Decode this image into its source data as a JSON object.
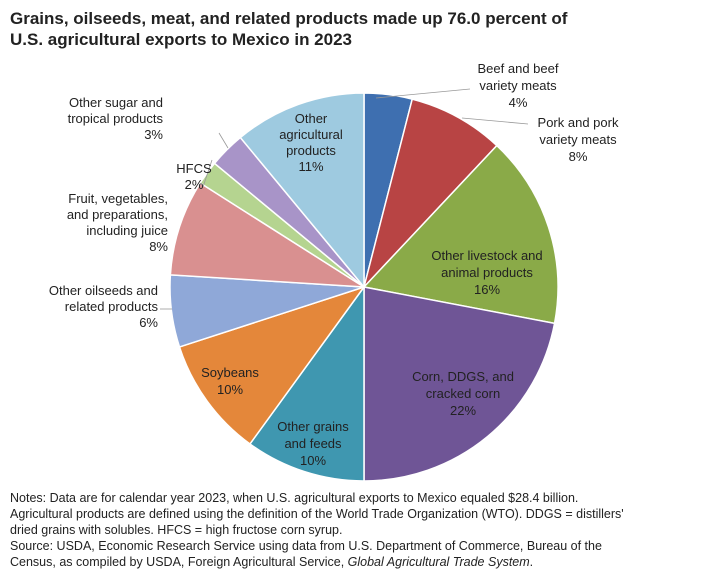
{
  "chart_data": {
    "type": "pie",
    "title": "Grains, oilseeds, meat, and related products made up 76.0 percent of U.S. agricultural exports to Mexico in 2023",
    "title_lines": [
      "Grains, oilseeds, meat, and related products made up 76.0 percent of",
      "U.S. agricultural exports to Mexico in 2023"
    ],
    "unit": "percent",
    "slices": [
      {
        "name": "Beef and beef variety meats",
        "value": 4,
        "color": "#3e6fb0",
        "label_lines": [
          "Beef and beef",
          "variety meats",
          "4%"
        ]
      },
      {
        "name": "Pork and pork variety meats",
        "value": 8,
        "color": "#b84444",
        "label_lines": [
          "Pork and pork",
          "variety meats",
          "8%"
        ]
      },
      {
        "name": "Other livestock and animal products",
        "value": 16,
        "color": "#8aaa48",
        "label_lines": [
          "Other livestock and",
          "animal products",
          "16%"
        ]
      },
      {
        "name": "Corn, DDGS, and cracked corn",
        "value": 22,
        "color": "#6f5596",
        "label_lines": [
          "Corn, DDGS, and",
          "cracked corn",
          "22%"
        ]
      },
      {
        "name": "Other grains and feeds",
        "value": 10,
        "color": "#3f97b0",
        "label_lines": [
          "Other grains",
          "and feeds",
          "10%"
        ]
      },
      {
        "name": "Soybeans",
        "value": 10,
        "color": "#e4873a",
        "label_lines": [
          "Soybeans",
          "10%"
        ]
      },
      {
        "name": "Other oilseeds and related products",
        "value": 6,
        "color": "#8fa8d8",
        "label_lines": [
          "Other oilseeds and",
          "related products",
          "6%"
        ]
      },
      {
        "name": "Fruit, vegetables, and preparations, including juice",
        "value": 8,
        "color": "#d99090",
        "label_lines": [
          "Fruit, vegetables,",
          "and preparations,",
          "including juice",
          "8%"
        ]
      },
      {
        "name": "HFCS",
        "value": 2,
        "color": "#b5d490",
        "label_lines": [
          "HFCS",
          "2%"
        ]
      },
      {
        "name": "Other sugar and tropical products",
        "value": 3,
        "color": "#a894c8",
        "label_lines": [
          "Other sugar and",
          "tropical products",
          "3%"
        ]
      },
      {
        "name": "Other agricultural products",
        "value": 11,
        "color": "#9ecae0",
        "label_lines": [
          "Other",
          "agricultural",
          "products",
          "11%"
        ]
      }
    ]
  },
  "notes": {
    "line1": "Notes: Data are for calendar year 2023, when U.S. agricultural exports to Mexico equaled $28.4 billion.",
    "line2": "Agricultural products are defined using the definition of the World Trade Organization (WTO). DDGS = distillers'",
    "line3": "dried grains with solubles. HFCS = high fructose corn syrup.",
    "line4": "Source: USDA, Economic Research Service using data from U.S. Department of Commerce, Bureau of the",
    "line5_prefix": "Census, as compiled by USDA, Foreign Agricultural Service, ",
    "line5_italic": "Global Agricultural Trade System",
    "line5_suffix": "."
  }
}
